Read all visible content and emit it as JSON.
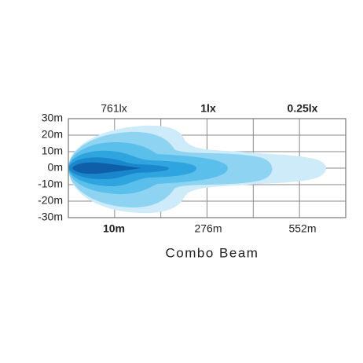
{
  "y_axis": {
    "labels": [
      "30m",
      "20m",
      "10m",
      "0m",
      "-10m",
      "-20m",
      "-30m"
    ]
  },
  "top_labels": [
    "761lx",
    "1lx",
    "0.25lx"
  ],
  "bottom_labels": [
    "10m",
    "276m",
    "552m"
  ],
  "title": "Combo Beam"
}
